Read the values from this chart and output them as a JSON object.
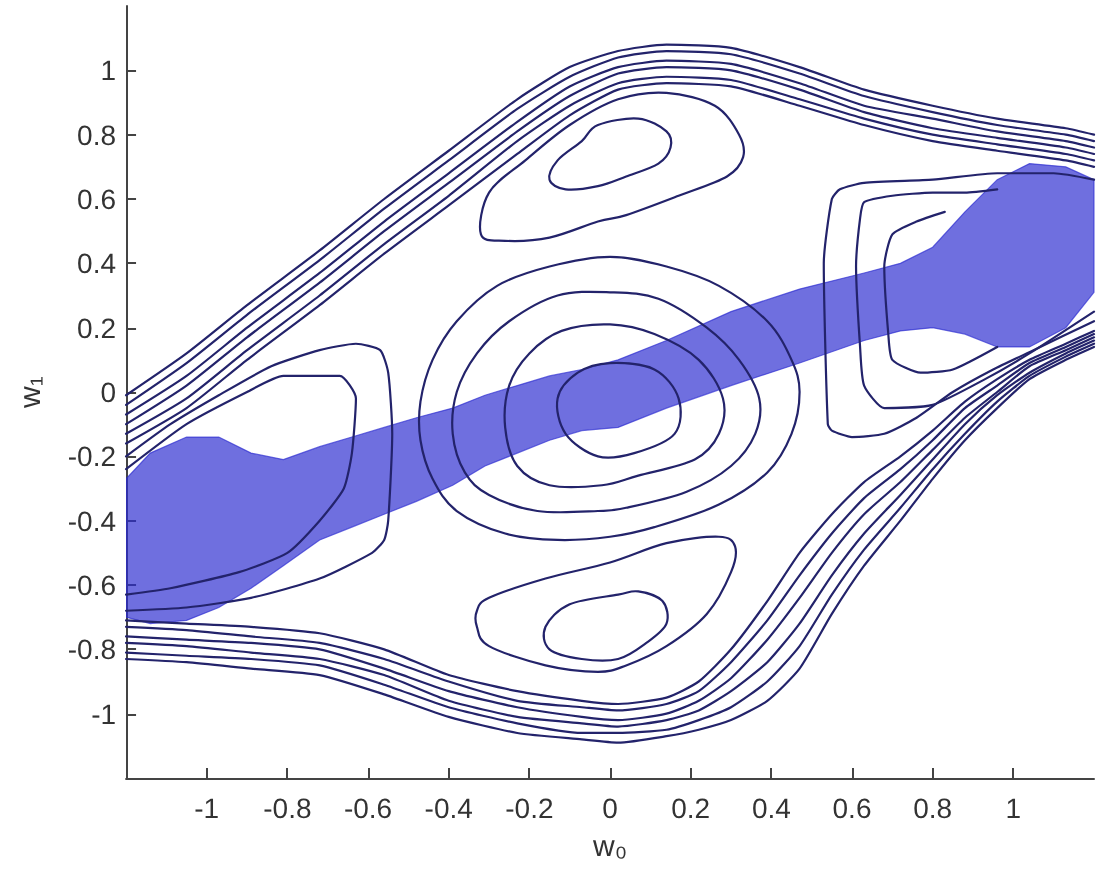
{
  "chart_data": {
    "type": "line",
    "xlabel": "w₀",
    "ylabel": "w₁",
    "xlim": [
      -1.2,
      1.2
    ],
    "ylim": [
      -1.2,
      1.2
    ],
    "xticks": [
      -1,
      -0.8,
      -0.6,
      -0.4,
      -0.2,
      0,
      0.2,
      0.4,
      0.6,
      0.8,
      1
    ],
    "yticks": [
      -1,
      -0.8,
      -0.6,
      -0.4,
      -0.2,
      0,
      0.2,
      0.4,
      0.6,
      0.8,
      1
    ],
    "grid": false,
    "marker": "none",
    "color": "#23236b",
    "x": [
      -1.2,
      -1.05,
      -0.9,
      -0.72,
      -0.56,
      -0.4,
      -0.23,
      -0.1,
      0.02,
      0.14,
      0.3,
      0.47,
      0.63,
      0.8,
      0.96,
      1.13,
      1.2
    ],
    "series": [
      {
        "values": [
          -0.01,
          0.12,
          0.27,
          0.44,
          0.6,
          0.75,
          0.91,
          1.01,
          1.06,
          1.08,
          1.07,
          1.01,
          0.94,
          0.89,
          0.85,
          0.82,
          0.8
        ]
      },
      {
        "values": [
          -0.04,
          0.09,
          0.24,
          0.41,
          0.57,
          0.72,
          0.88,
          0.98,
          1.04,
          1.06,
          1.05,
          0.99,
          0.92,
          0.87,
          0.83,
          0.8,
          0.78
        ]
      },
      {
        "values": [
          -0.07,
          0.05,
          0.2,
          0.37,
          0.53,
          0.68,
          0.84,
          0.95,
          1.01,
          1.03,
          1.02,
          0.96,
          0.89,
          0.85,
          0.81,
          0.78,
          0.76
        ]
      },
      {
        "values": [
          -0.1,
          0.02,
          0.17,
          0.34,
          0.5,
          0.65,
          0.81,
          0.92,
          0.99,
          1.01,
          1,
          0.94,
          0.87,
          0.82,
          0.79,
          0.76,
          0.74
        ]
      },
      {
        "values": [
          -0.13,
          -0.02,
          0.13,
          0.3,
          0.46,
          0.61,
          0.78,
          0.89,
          0.96,
          0.98,
          0.97,
          0.91,
          0.85,
          0.8,
          0.77,
          0.74,
          0.72
        ]
      },
      {
        "values": [
          -0.16,
          -0.05,
          0.1,
          0.27,
          0.43,
          0.58,
          0.74,
          0.86,
          0.94,
          0.96,
          0.95,
          0.89,
          0.83,
          0.78,
          0.75,
          0.72,
          0.7
        ]
      },
      {
        "x": [
          -1.2,
          -1.05,
          -0.89,
          -0.72,
          -0.56,
          -0.4,
          -0.23,
          -0.07,
          0.02,
          0.14,
          0.22,
          0.3,
          0.39,
          0.47,
          0.55,
          0.63,
          0.72,
          0.8,
          0.88,
          0.96,
          1.04,
          1.13,
          1.2
        ],
        "values": [
          -0.83,
          -0.84,
          -0.86,
          -0.88,
          -0.94,
          -1.01,
          -1.06,
          -1.08,
          -1.09,
          -1.07,
          -1.05,
          -1.02,
          -0.96,
          -0.86,
          -0.69,
          -0.54,
          -0.4,
          -0.27,
          -0.15,
          -0.05,
          0.04,
          0.1,
          0.14
        ]
      },
      {
        "x": [
          -1.2,
          -1.05,
          -0.89,
          -0.72,
          -0.56,
          -0.4,
          -0.23,
          -0.07,
          0.02,
          0.14,
          0.22,
          0.3,
          0.39,
          0.47,
          0.55,
          0.63,
          0.72,
          0.8,
          0.88,
          0.96,
          1.04,
          1.13,
          1.2
        ],
        "values": [
          -0.81,
          -0.82,
          -0.83,
          -0.85,
          -0.91,
          -0.98,
          -1.03,
          -1.06,
          -1.06,
          -1.05,
          -1.02,
          -0.98,
          -0.9,
          -0.79,
          -0.63,
          -0.49,
          -0.36,
          -0.24,
          -0.13,
          -0.03,
          0.05,
          0.11,
          0.15
        ]
      },
      {
        "x": [
          -1.2,
          -1.05,
          -0.89,
          -0.72,
          -0.56,
          -0.4,
          -0.23,
          -0.07,
          0.02,
          0.14,
          0.22,
          0.3,
          0.39,
          0.47,
          0.55,
          0.63,
          0.72,
          0.8,
          0.88,
          0.96,
          1.04,
          1.13,
          1.2
        ],
        "values": [
          -0.78,
          -0.79,
          -0.81,
          -0.83,
          -0.88,
          -0.96,
          -1.01,
          -1.03,
          -1.04,
          -1.02,
          -0.99,
          -0.93,
          -0.84,
          -0.72,
          -0.57,
          -0.44,
          -0.32,
          -0.21,
          -0.1,
          -0.01,
          0.06,
          0.12,
          0.16
        ]
      },
      {
        "x": [
          -1.2,
          -1.05,
          -0.89,
          -0.72,
          -0.56,
          -0.4,
          -0.23,
          -0.07,
          0.02,
          0.14,
          0.22,
          0.3,
          0.39,
          0.47,
          0.55,
          0.63,
          0.72,
          0.8,
          0.88,
          0.96,
          1.04,
          1.13,
          1.2
        ],
        "values": [
          -0.76,
          -0.77,
          -0.78,
          -0.8,
          -0.86,
          -0.93,
          -0.98,
          -1.01,
          -1.02,
          -1,
          -0.96,
          -0.89,
          -0.77,
          -0.64,
          -0.5,
          -0.38,
          -0.28,
          -0.18,
          -0.08,
          0,
          0.08,
          0.13,
          0.17
        ]
      },
      {
        "x": [
          -1.2,
          -1.05,
          -0.89,
          -0.72,
          -0.56,
          -0.4,
          -0.23,
          -0.07,
          0.02,
          0.14,
          0.22,
          0.3,
          0.39,
          0.47,
          0.55,
          0.63,
          0.72,
          0.8,
          0.88,
          0.96,
          1.04,
          1.13,
          1.2
        ],
        "values": [
          -0.73,
          -0.74,
          -0.76,
          -0.78,
          -0.83,
          -0.9,
          -0.96,
          -0.98,
          -0.99,
          -0.97,
          -0.93,
          -0.84,
          -0.71,
          -0.57,
          -0.44,
          -0.33,
          -0.24,
          -0.15,
          -0.05,
          0.02,
          0.09,
          0.14,
          0.18
        ]
      },
      {
        "x": [
          -1.2,
          -1.05,
          -0.89,
          -0.72,
          -0.56,
          -0.4,
          -0.23,
          -0.07,
          0.02,
          0.14,
          0.22,
          0.3,
          0.39,
          0.47,
          0.55,
          0.63,
          0.72,
          0.8,
          0.88,
          0.96,
          1.04,
          1.13,
          1.2
        ],
        "values": [
          -0.71,
          -0.72,
          -0.73,
          -0.75,
          -0.8,
          -0.88,
          -0.93,
          -0.96,
          -0.97,
          -0.95,
          -0.9,
          -0.8,
          -0.65,
          -0.5,
          -0.38,
          -0.28,
          -0.2,
          -0.12,
          -0.03,
          0.04,
          0.1,
          0.15,
          0.19
        ]
      },
      {
        "x": [
          -1.2,
          -1.09,
          -0.97,
          -0.84,
          -0.72,
          -0.63,
          -0.57,
          -0.55,
          -0.54,
          -0.55,
          -0.56,
          -0.59,
          -0.72,
          -0.89,
          -1.05,
          -1.2
        ],
        "values": [
          -0.2,
          -0.1,
          -0.01,
          0.08,
          0.13,
          0.15,
          0.13,
          0.06,
          -0.13,
          -0.4,
          -0.46,
          -0.5,
          -0.58,
          -0.64,
          -0.67,
          -0.68
        ]
      },
      {
        "x": [
          -1.2,
          -1.05,
          -0.9,
          -0.81,
          -0.67,
          -0.63,
          -0.64,
          -0.66,
          -0.72,
          -0.8,
          -0.92,
          -1.09,
          -1.2
        ],
        "values": [
          -0.24,
          -0.1,
          0,
          0.05,
          0.05,
          -0.02,
          -0.19,
          -0.3,
          -0.4,
          -0.5,
          -0.56,
          -0.61,
          -0.63
        ]
      },
      {
        "x": [
          1.2,
          1.1,
          0.96,
          0.8,
          0.63,
          0.57,
          0.55,
          0.53,
          0.54,
          0.55,
          0.6,
          0.68,
          0.76,
          0.85,
          0.95,
          1.05,
          1.2
        ],
        "values": [
          0.66,
          0.68,
          0.68,
          0.66,
          0.65,
          0.63,
          0.6,
          0.4,
          -0.1,
          -0.12,
          -0.14,
          -0.13,
          -0.08,
          0,
          0.07,
          0.13,
          0.22
        ]
      },
      {
        "x": [
          0.96,
          0.88,
          0.8,
          0.7,
          0.63,
          0.62,
          0.61,
          0.62,
          0.63,
          0.68,
          0.8,
          0.93,
          1.04,
          1.2
        ],
        "values": [
          0.63,
          0.62,
          0.62,
          0.61,
          0.59,
          0.54,
          0.39,
          0.14,
          0.02,
          -0.05,
          -0.04,
          0.04,
          0.12,
          0.25
        ]
      },
      {
        "x": [
          0.83,
          0.76,
          0.7,
          0.68,
          0.69,
          0.7,
          0.77,
          0.85,
          0.96
        ],
        "values": [
          0.56,
          0.53,
          0.49,
          0.39,
          0.18,
          0.1,
          0.06,
          0.07,
          0.14
        ]
      },
      {
        "color": "#2b2bd0",
        "x": [
          -1.2,
          -1.14,
          -1.05,
          -0.97,
          -0.89,
          -0.81,
          -0.72,
          -0.64,
          -0.56,
          -0.48,
          -0.39,
          -0.31,
          -0.23,
          -0.15,
          -0.07,
          0.02,
          0.14,
          0.3,
          0.47,
          0.63,
          0.72,
          0.8,
          0.88,
          0.96,
          1.04,
          1.13,
          1.2
        ],
        "values": [
          null,
          null,
          null,
          null,
          null,
          null,
          null,
          null,
          null,
          null,
          null,
          null,
          null,
          null,
          null,
          null,
          null,
          null,
          null,
          null,
          null,
          null,
          null,
          null,
          null,
          null,
          null
        ],
        "upper": [
          -0.27,
          -0.19,
          -0.14,
          -0.14,
          -0.19,
          -0.21,
          -0.17,
          -0.14,
          -0.11,
          -0.08,
          -0.05,
          -0.01,
          0.02,
          0.05,
          0.07,
          0.1,
          0.16,
          0.25,
          0.32,
          0.37,
          0.4,
          0.45,
          0.56,
          0.66,
          0.71,
          0.7,
          0.66
        ],
        "lower": [
          -0.7,
          -0.72,
          -0.71,
          -0.67,
          -0.61,
          -0.54,
          -0.46,
          -0.42,
          -0.38,
          -0.34,
          -0.29,
          -0.23,
          -0.19,
          -0.15,
          -0.12,
          -0.11,
          -0.05,
          0.02,
          0.09,
          0.16,
          0.19,
          0.2,
          0.18,
          0.14,
          0.14,
          0.2,
          0.31
        ]
      }
    ]
  }
}
